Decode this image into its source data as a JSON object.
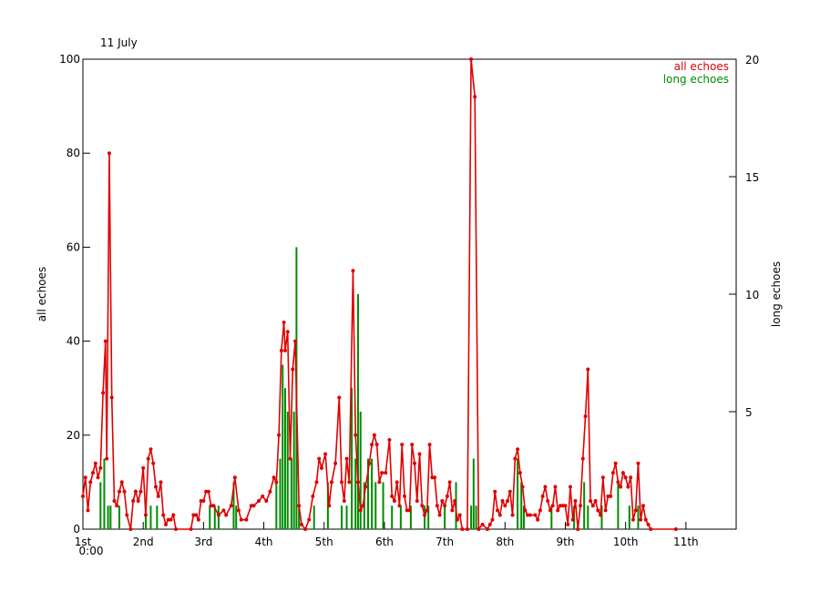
{
  "chart_data": {
    "type": "line",
    "title": "11 July",
    "x_sublabel": "0:00",
    "ylabel": "all echoes",
    "y2label": "long echoes",
    "xlim": [
      0,
      260
    ],
    "xticks": [
      {
        "value": 0,
        "label": "1st"
      },
      {
        "value": 24,
        "label": "2nd"
      },
      {
        "value": 48,
        "label": "3rd"
      },
      {
        "value": 72,
        "label": "4th"
      },
      {
        "value": 96,
        "label": "5th"
      },
      {
        "value": 120,
        "label": "6th"
      },
      {
        "value": 144,
        "label": "7th"
      },
      {
        "value": 168,
        "label": "8th"
      },
      {
        "value": 192,
        "label": "9th"
      },
      {
        "value": 216,
        "label": "10th"
      },
      {
        "value": 240,
        "label": "11th"
      }
    ],
    "ylim": [
      0,
      100
    ],
    "yticks": [
      0,
      20,
      40,
      60,
      80,
      100
    ],
    "y2lim": [
      0,
      20
    ],
    "y2ticks": [
      5,
      10,
      15,
      20
    ],
    "legend": "upper right",
    "series": [
      {
        "name": "all echoes",
        "color": "#e00000",
        "type": "line",
        "x": [
          0,
          1,
          2,
          3,
          4,
          5,
          6,
          7,
          8,
          9,
          9.5,
          10.5,
          11.5,
          12.5,
          13.5,
          14.5,
          15.5,
          16.5,
          17.5,
          19,
          20,
          21,
          22,
          23,
          24,
          25,
          26,
          27,
          28,
          29,
          30,
          31,
          32,
          33,
          34,
          35,
          36,
          37,
          43,
          44,
          45,
          46,
          47,
          48,
          49,
          50,
          51,
          52,
          54,
          56,
          57,
          59,
          60.5,
          62,
          63,
          65,
          67,
          68,
          70,
          71.5,
          73,
          74.5,
          76,
          77,
          78,
          79,
          80,
          80.5,
          81.5,
          82.5,
          83.5,
          84.5,
          86,
          87,
          88.5,
          90,
          91.5,
          93,
          94,
          95,
          96.5,
          98,
          99,
          100.5,
          102,
          103,
          104,
          105,
          106,
          107.5,
          108.5,
          109.5,
          110.5,
          111.5,
          112.5,
          114,
          115,
          116,
          117,
          118,
          119,
          120.5,
          122,
          123,
          124,
          125,
          126,
          127,
          128,
          129,
          130,
          131,
          132,
          133,
          134,
          135,
          136,
          137,
          138,
          139,
          140,
          141,
          142,
          143,
          144,
          145,
          146,
          147,
          148,
          149,
          150,
          151,
          153,
          154.5,
          156,
          157.5,
          159,
          161,
          162,
          163,
          164,
          165,
          166,
          167,
          168,
          169,
          170,
          171,
          172,
          173,
          174,
          175,
          176,
          177,
          178,
          180,
          181,
          182,
          183,
          184,
          185,
          186,
          187,
          188,
          189,
          190,
          191,
          192,
          193,
          194,
          195,
          196,
          197,
          198,
          199,
          200,
          201,
          202,
          203,
          204,
          205,
          206,
          207,
          208,
          209,
          210,
          211,
          212,
          213,
          214,
          215,
          216,
          217,
          218,
          219,
          220,
          221,
          222,
          223,
          224,
          225,
          226,
          236
        ],
        "values": [
          7,
          11,
          4,
          10,
          12,
          14,
          11,
          13,
          29,
          40,
          15,
          80,
          28,
          6,
          5,
          8,
          10,
          8,
          3,
          0,
          6,
          8,
          6,
          8,
          13,
          3,
          15,
          17,
          14,
          9,
          7,
          10,
          3,
          1,
          2,
          2,
          3,
          0,
          0,
          3,
          3,
          2,
          6,
          6,
          8,
          8,
          5,
          5,
          3,
          4,
          3,
          5,
          11,
          4,
          2,
          2,
          5,
          5,
          6,
          7,
          6,
          8,
          11,
          10,
          20,
          38,
          44,
          38,
          42,
          15,
          34,
          40,
          5,
          1,
          0,
          2,
          7,
          10,
          15,
          13,
          16,
          5,
          10,
          14,
          28,
          10,
          6,
          15,
          10,
          55,
          20,
          10,
          4,
          5,
          9,
          14,
          18,
          20,
          18,
          10,
          12,
          12,
          19,
          7,
          6,
          10,
          5,
          18,
          7,
          4,
          4,
          18,
          14,
          6,
          16,
          5,
          3,
          4,
          18,
          11,
          11,
          5,
          3,
          6,
          5,
          7,
          10,
          4,
          6,
          2,
          3,
          0,
          0,
          100,
          92,
          0,
          1,
          0,
          1,
          2,
          8,
          4,
          3,
          6,
          5,
          6,
          8,
          3,
          15,
          17,
          12,
          9,
          4,
          3,
          3,
          3,
          2,
          4,
          7,
          9,
          6,
          4,
          5,
          9,
          4,
          5,
          5,
          5,
          1,
          9,
          2,
          6,
          0,
          5,
          15,
          24,
          34,
          6,
          5,
          6,
          4,
          3,
          11,
          4,
          7,
          7,
          12,
          14,
          10,
          9,
          12,
          11,
          9,
          11,
          2,
          4,
          14,
          2,
          5,
          2,
          1,
          0,
          0
        ]
      },
      {
        "name": "long echoes",
        "color": "#008c00",
        "type": "bar",
        "axis": "y2",
        "x": [
          7,
          8.5,
          10,
          11,
          14.5,
          25,
          27,
          29.5,
          50.5,
          52.5,
          54,
          60,
          61,
          77,
          78.5,
          79.5,
          80.5,
          81.5,
          83,
          84,
          85,
          86,
          92,
          97.5,
          103,
          105,
          107,
          108.5,
          109.5,
          110.5,
          112,
          113.5,
          115,
          116.5,
          119.5,
          123,
          126.5,
          130.5,
          136,
          137.5,
          144,
          148.5,
          154.5,
          155.5,
          156.5,
          173,
          174.5,
          175.5,
          186.5,
          195.5,
          199.5,
          201,
          206.5,
          213,
          217.5,
          221
        ],
        "values": [
          2,
          3,
          1,
          1,
          1,
          1,
          1,
          1,
          1,
          1,
          1,
          2,
          1,
          2,
          3,
          7,
          6,
          5,
          3,
          5,
          12,
          1,
          1,
          2,
          1,
          1,
          6,
          3,
          10,
          5,
          2,
          3,
          3,
          2,
          2,
          1,
          1,
          1,
          1,
          1,
          1,
          2,
          1,
          3,
          1,
          3,
          2,
          1,
          1,
          1,
          2,
          1,
          1,
          2,
          1,
          1
        ]
      }
    ]
  }
}
